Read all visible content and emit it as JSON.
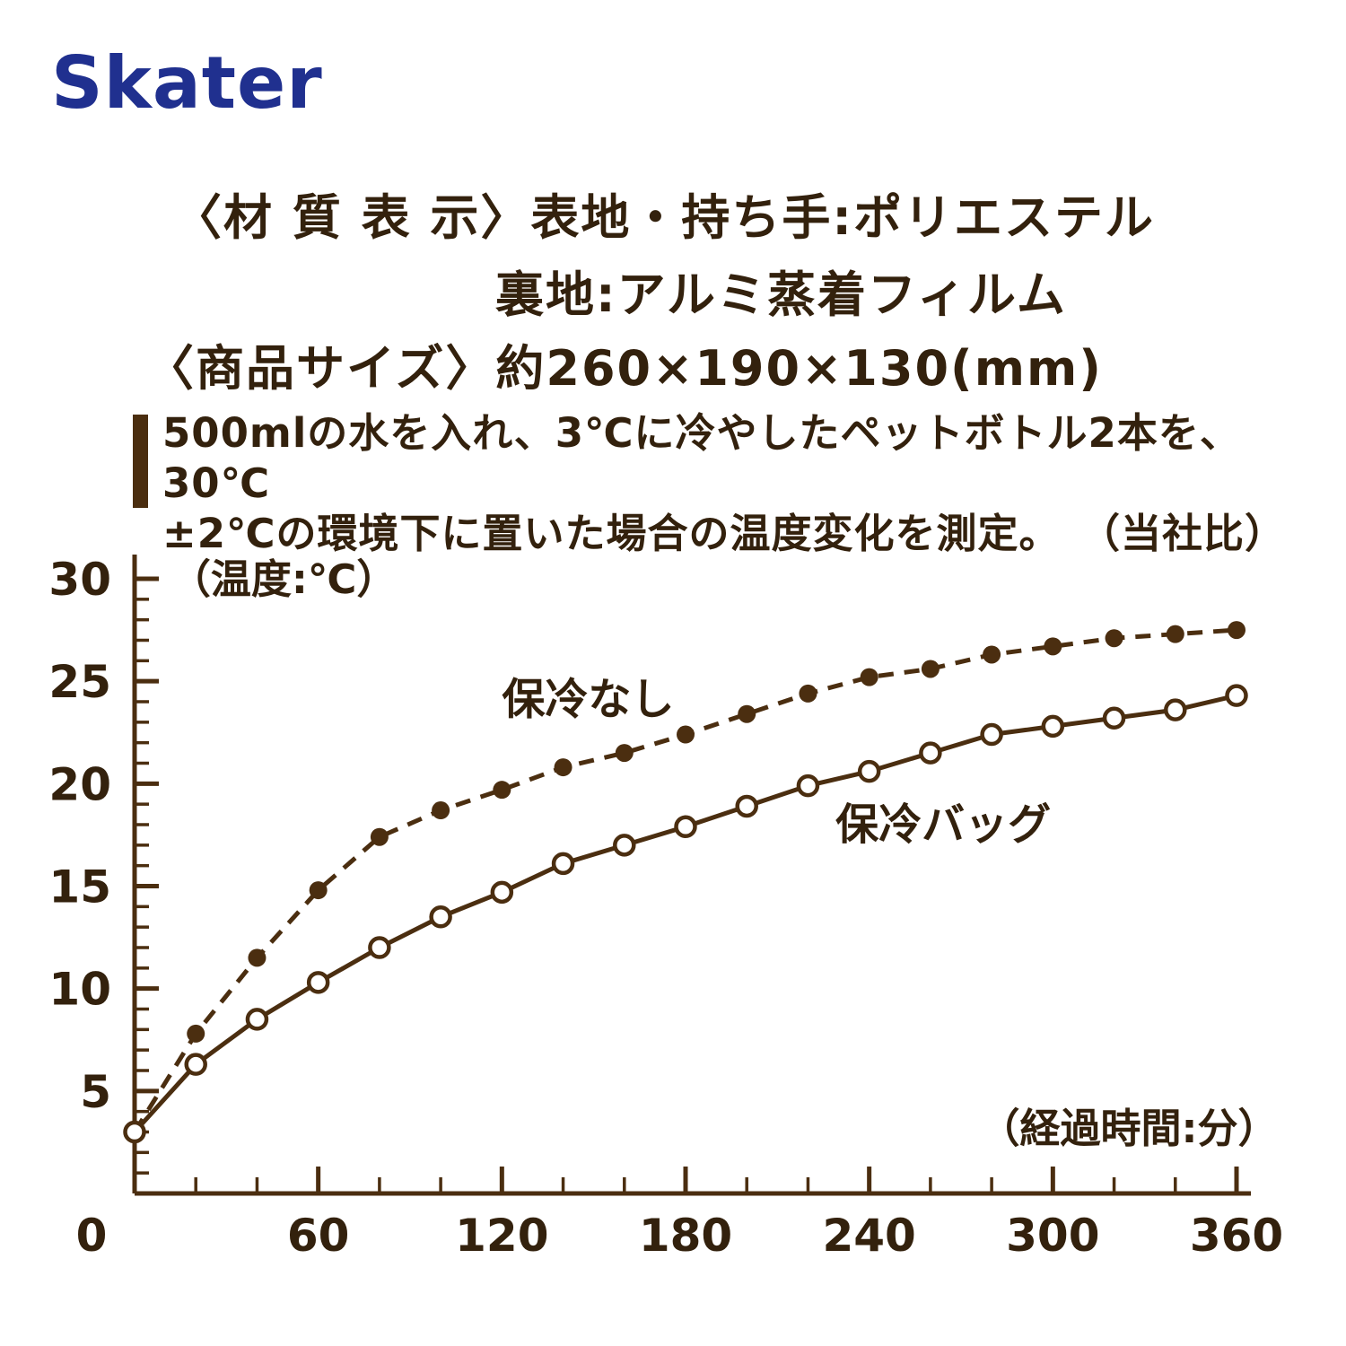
{
  "brand": "Skater",
  "colors": {
    "logo_blue": "#20308f",
    "text_brown": "#33210d",
    "line_brown": "#4b2e10",
    "background": "#ffffff"
  },
  "header": {
    "material_prefix": "〈材 質 表 示〉",
    "material_line1": "表地・持ち手:ポリエステル",
    "material_line2": "裏地:アルミ蒸着フィルム",
    "size_line": "〈商品サイズ〉約260×190×130(mm)"
  },
  "note": {
    "line1": "500mlの水を入れ、3℃に冷やしたペットボトル2本を、30℃",
    "line2": "±2℃の環境下に置いた場合の温度変化を測定。",
    "company_ref": "（当社比）"
  },
  "chart_data": {
    "type": "line",
    "title": "",
    "xlabel": "（経過時間:分）",
    "ylabel": "（温度:℃）",
    "xlim": [
      0,
      360
    ],
    "ylim": [
      0,
      30
    ],
    "xticks": [
      0,
      60,
      120,
      180,
      240,
      300,
      360
    ],
    "yticks": [
      5,
      10,
      15,
      20,
      25,
      30
    ],
    "minor_x_step": 20,
    "minor_y_step": 1,
    "grid": false,
    "legend_position": "inline-annotations",
    "x": [
      0,
      20,
      40,
      60,
      80,
      100,
      120,
      140,
      160,
      180,
      200,
      220,
      240,
      260,
      280,
      300,
      320,
      340,
      360
    ],
    "series": [
      {
        "name": "保冷なし",
        "line_style": "dashed",
        "marker": "filled-circle",
        "label_pos": [
          120,
          23.4
        ],
        "values": [
          3,
          7.8,
          11.5,
          14.8,
          17.4,
          18.7,
          19.7,
          20.8,
          21.5,
          22.4,
          23.4,
          24.4,
          25.2,
          25.6,
          26.3,
          26.7,
          27.1,
          27.3,
          27.5
        ]
      },
      {
        "name": "保冷バッグ",
        "line_style": "solid",
        "marker": "open-circle",
        "label_pos": [
          229,
          17.3
        ],
        "values": [
          3,
          6.3,
          8.5,
          10.3,
          12.0,
          13.5,
          14.7,
          16.1,
          17.0,
          17.9,
          18.9,
          19.9,
          20.6,
          21.5,
          22.4,
          22.8,
          23.2,
          23.6,
          24.3
        ]
      }
    ],
    "ylabel_pos": [
      11.7,
      29.3
    ],
    "xlabel_pos": [
      276,
      2.5
    ]
  }
}
